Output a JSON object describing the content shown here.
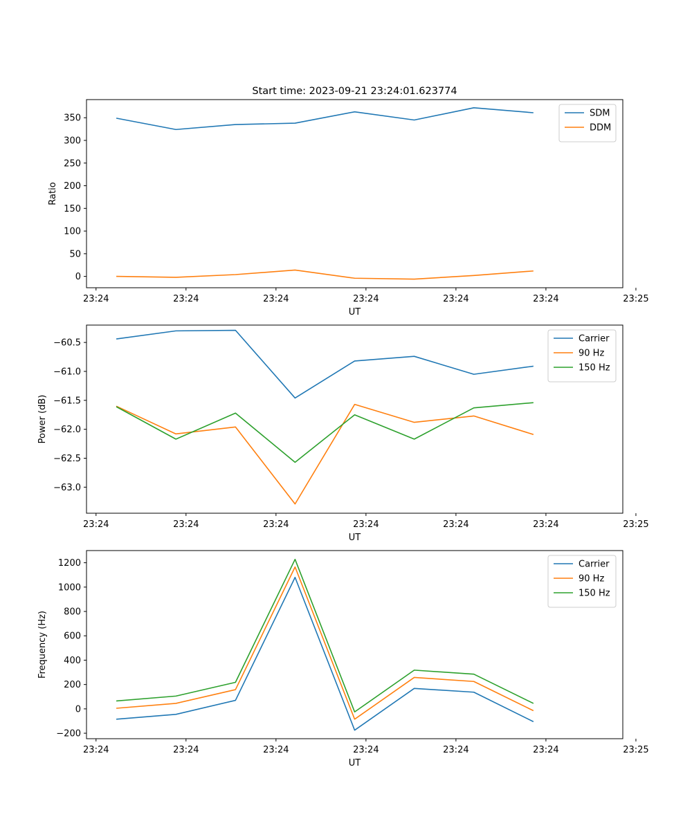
{
  "chart_data": [
    {
      "type": "line",
      "title": "Start time: 2023-09-21 23:24:01.623774",
      "xlabel": "UT",
      "ylabel": "Ratio",
      "x": [
        1,
        2,
        3,
        4,
        5,
        6,
        7,
        8
      ],
      "xlim": [
        0.5,
        9.5
      ],
      "xticks": [
        0.66,
        2.17,
        3.68,
        5.19,
        6.7,
        8.21,
        9.72
      ],
      "xtick_labels": [
        "23:24",
        "23:24",
        "23:24",
        "23:24",
        "23:24",
        "23:24",
        "23:25"
      ],
      "ylim": [
        -25,
        390
      ],
      "yticks": [
        0,
        50,
        100,
        150,
        200,
        250,
        300,
        350
      ],
      "ytick_labels": [
        "0",
        "50",
        "100",
        "150",
        "200",
        "250",
        "300",
        "350"
      ],
      "legend": "top-right",
      "series": [
        {
          "name": "SDM",
          "color": "#1f77b4",
          "values": [
            349,
            324,
            335,
            338,
            363,
            345,
            372,
            361
          ]
        },
        {
          "name": "DDM",
          "color": "#ff7f0e",
          "values": [
            0,
            -2,
            4,
            14,
            -4,
            -6,
            2,
            12
          ]
        }
      ]
    },
    {
      "type": "line",
      "title": "",
      "xlabel": "UT",
      "ylabel": "Power (dB)",
      "x": [
        1,
        2,
        3,
        4,
        5,
        6,
        7,
        8
      ],
      "xlim": [
        0.5,
        9.5
      ],
      "xticks": [
        0.66,
        2.17,
        3.68,
        5.19,
        6.7,
        8.21,
        9.72
      ],
      "xtick_labels": [
        "23:24",
        "23:24",
        "23:24",
        "23:24",
        "23:24",
        "23:24",
        "23:25"
      ],
      "ylim": [
        -63.45,
        -60.2
      ],
      "yticks": [
        -63.0,
        -62.5,
        -62.0,
        -61.5,
        -61.0,
        -60.5
      ],
      "ytick_labels": [
        "−63.0",
        "−62.5",
        "−62.0",
        "−61.5",
        "−61.0",
        "−60.5"
      ],
      "legend": "top-right",
      "series": [
        {
          "name": "Carrier",
          "color": "#1f77b4",
          "values": [
            -60.44,
            -60.3,
            -60.29,
            -61.46,
            -60.82,
            -60.74,
            -61.05,
            -60.91
          ]
        },
        {
          "name": "90 Hz",
          "color": "#ff7f0e",
          "values": [
            -61.6,
            -62.08,
            -61.96,
            -63.29,
            -61.57,
            -61.88,
            -61.77,
            -62.09
          ]
        },
        {
          "name": "150 Hz",
          "color": "#2ca02c",
          "values": [
            -61.61,
            -62.17,
            -61.72,
            -62.57,
            -61.75,
            -62.17,
            -61.63,
            -61.54
          ]
        }
      ]
    },
    {
      "type": "line",
      "title": "",
      "xlabel": "UT",
      "ylabel": "Frequency (Hz)",
      "x": [
        1,
        2,
        3,
        4,
        5,
        6,
        7,
        8
      ],
      "xlim": [
        0.5,
        9.5
      ],
      "xticks": [
        0.66,
        2.17,
        3.68,
        5.19,
        6.7,
        8.21,
        9.72
      ],
      "xtick_labels": [
        "23:24",
        "23:24",
        "23:24",
        "23:24",
        "23:24",
        "23:24",
        "23:25"
      ],
      "ylim": [
        -245,
        1300
      ],
      "yticks": [
        -200,
        0,
        200,
        400,
        600,
        800,
        1000,
        1200
      ],
      "ytick_labels": [
        "−200",
        "0",
        "200",
        "400",
        "600",
        "800",
        "1000",
        "1200"
      ],
      "legend": "top-right",
      "series": [
        {
          "name": "Carrier",
          "color": "#1f77b4",
          "values": [
            -85,
            -45,
            70,
            1080,
            -175,
            168,
            137,
            -105
          ]
        },
        {
          "name": "90 Hz",
          "color": "#ff7f0e",
          "values": [
            5,
            45,
            158,
            1165,
            -85,
            258,
            225,
            -15
          ]
        },
        {
          "name": "150 Hz",
          "color": "#2ca02c",
          "values": [
            65,
            105,
            218,
            1228,
            -25,
            318,
            285,
            45
          ]
        }
      ]
    }
  ]
}
